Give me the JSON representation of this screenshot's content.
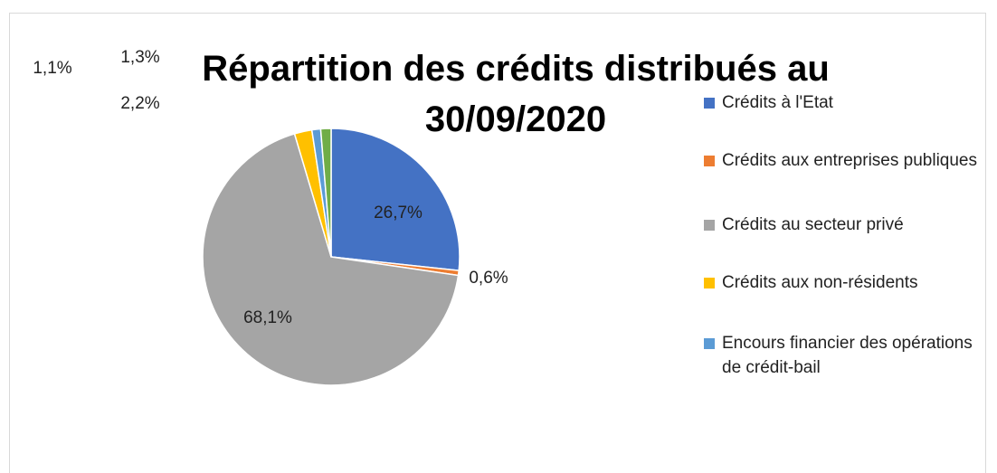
{
  "chart_data": {
    "type": "pie",
    "title": "Répartition des crédits distribués au 30/09/2020",
    "categories": [
      "Crédits à l'Etat",
      "Crédits aux entreprises publiques",
      "Crédits au secteur privé",
      "Crédits aux non-résidents",
      "Encours financier des opérations de crédit-bail",
      null
    ],
    "values": [
      26.7,
      0.6,
      68.1,
      2.2,
      1.1,
      1.3
    ],
    "value_labels": [
      "26,7%",
      "0,6%",
      "68,1%",
      "2,2%",
      "1,1%",
      "1,3%"
    ],
    "colors": [
      "#4472c4",
      "#ed7d31",
      "#a5a5a5",
      "#ffc000",
      "#5b9bd5",
      "#70ad47"
    ],
    "legend": "right"
  }
}
